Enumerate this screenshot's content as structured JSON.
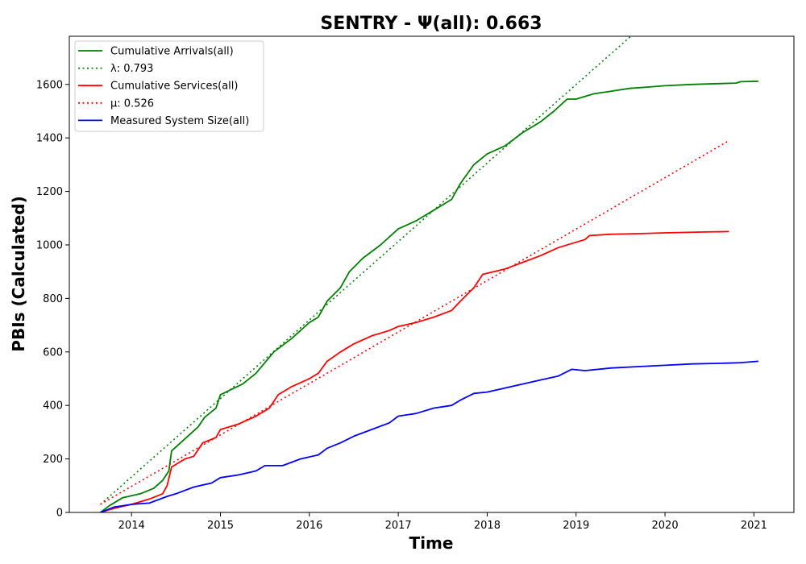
{
  "chart_data": {
    "type": "line",
    "title": "SENTRY -  Ψ(all): 0.663",
    "xlabel": "Time",
    "ylabel": "PBIs (Calculated)",
    "xlim": [
      2013.3,
      2021.45
    ],
    "ylim": [
      0,
      1780
    ],
    "x_ticks": [
      2014,
      2015,
      2016,
      2017,
      2018,
      2019,
      2020,
      2021
    ],
    "y_ticks": [
      0,
      200,
      400,
      600,
      800,
      1000,
      1200,
      1400,
      1600
    ],
    "legend_position": "top-left",
    "legend": [
      {
        "label": "Cumulative Arrivals(all)",
        "color": "#008000",
        "style": "solid"
      },
      {
        "label": "λ: 0.793",
        "color": "#008000",
        "style": "dotted"
      },
      {
        "label": "Cumulative Services(all)",
        "color": "#ff0000",
        "style": "solid"
      },
      {
        "label": "μ: 0.526",
        "color": "#ff0000",
        "style": "dotted"
      },
      {
        "label": "Measured System Size(all)",
        "color": "#0000ff",
        "style": "solid"
      }
    ],
    "series": [
      {
        "name": "Cumulative Arrivals(all)",
        "color": "#008000",
        "style": "solid",
        "points": [
          [
            2013.65,
            0
          ],
          [
            2013.75,
            25
          ],
          [
            2013.9,
            55
          ],
          [
            2014.1,
            70
          ],
          [
            2014.25,
            90
          ],
          [
            2014.35,
            120
          ],
          [
            2014.42,
            155
          ],
          [
            2014.45,
            230
          ],
          [
            2014.55,
            260
          ],
          [
            2014.65,
            290
          ],
          [
            2014.75,
            320
          ],
          [
            2014.82,
            355
          ],
          [
            2014.95,
            390
          ],
          [
            2015.0,
            440
          ],
          [
            2015.25,
            480
          ],
          [
            2015.4,
            520
          ],
          [
            2015.6,
            600
          ],
          [
            2015.8,
            650
          ],
          [
            2016.0,
            710
          ],
          [
            2016.1,
            730
          ],
          [
            2016.2,
            790
          ],
          [
            2016.35,
            840
          ],
          [
            2016.45,
            900
          ],
          [
            2016.6,
            950
          ],
          [
            2016.8,
            1000
          ],
          [
            2017.0,
            1060
          ],
          [
            2017.2,
            1090
          ],
          [
            2017.4,
            1130
          ],
          [
            2017.6,
            1170
          ],
          [
            2017.7,
            1230
          ],
          [
            2017.85,
            1300
          ],
          [
            2018.0,
            1340
          ],
          [
            2018.2,
            1370
          ],
          [
            2018.4,
            1420
          ],
          [
            2018.6,
            1460
          ],
          [
            2018.75,
            1500
          ],
          [
            2018.9,
            1545
          ],
          [
            2019.0,
            1545
          ],
          [
            2019.2,
            1565
          ],
          [
            2019.4,
            1575
          ],
          [
            2019.6,
            1585
          ],
          [
            2019.8,
            1590
          ],
          [
            2020.0,
            1595
          ],
          [
            2020.3,
            1600
          ],
          [
            2020.6,
            1603
          ],
          [
            2020.8,
            1605
          ],
          [
            2020.85,
            1610
          ],
          [
            2021.05,
            1612
          ]
        ]
      },
      {
        "name": "λ: 0.793",
        "color": "#008000",
        "style": "dotted",
        "points": [
          [
            2013.65,
            30
          ],
          [
            2019.65,
            1790
          ]
        ]
      },
      {
        "name": "Cumulative Services(all)",
        "color": "#ff0000",
        "style": "solid",
        "points": [
          [
            2013.65,
            0
          ],
          [
            2013.8,
            15
          ],
          [
            2014.0,
            30
          ],
          [
            2014.2,
            50
          ],
          [
            2014.35,
            70
          ],
          [
            2014.4,
            100
          ],
          [
            2014.45,
            170
          ],
          [
            2014.6,
            200
          ],
          [
            2014.7,
            210
          ],
          [
            2014.8,
            260
          ],
          [
            2014.95,
            280
          ],
          [
            2015.0,
            310
          ],
          [
            2015.2,
            330
          ],
          [
            2015.4,
            360
          ],
          [
            2015.55,
            390
          ],
          [
            2015.65,
            440
          ],
          [
            2015.8,
            470
          ],
          [
            2016.0,
            500
          ],
          [
            2016.1,
            520
          ],
          [
            2016.2,
            565
          ],
          [
            2016.35,
            600
          ],
          [
            2016.5,
            630
          ],
          [
            2016.7,
            660
          ],
          [
            2016.9,
            680
          ],
          [
            2017.0,
            695
          ],
          [
            2017.2,
            710
          ],
          [
            2017.4,
            730
          ],
          [
            2017.6,
            755
          ],
          [
            2017.7,
            790
          ],
          [
            2017.85,
            840
          ],
          [
            2017.95,
            890
          ],
          [
            2018.2,
            910
          ],
          [
            2018.4,
            935
          ],
          [
            2018.6,
            960
          ],
          [
            2018.8,
            990
          ],
          [
            2019.0,
            1010
          ],
          [
            2019.1,
            1020
          ],
          [
            2019.15,
            1035
          ],
          [
            2019.4,
            1040
          ],
          [
            2019.7,
            1042
          ],
          [
            2020.0,
            1045
          ],
          [
            2020.4,
            1048
          ],
          [
            2020.72,
            1050
          ]
        ]
      },
      {
        "name": "μ: 0.526",
        "color": "#ff0000",
        "style": "dotted",
        "points": [
          [
            2013.65,
            30
          ],
          [
            2020.72,
            1390
          ]
        ]
      },
      {
        "name": "Measured System Size(all)",
        "color": "#0000ff",
        "style": "solid",
        "points": [
          [
            2013.65,
            0
          ],
          [
            2013.8,
            20
          ],
          [
            2014.0,
            30
          ],
          [
            2014.2,
            35
          ],
          [
            2014.4,
            60
          ],
          [
            2014.5,
            70
          ],
          [
            2014.7,
            95
          ],
          [
            2014.9,
            110
          ],
          [
            2015.0,
            130
          ],
          [
            2015.2,
            140
          ],
          [
            2015.4,
            155
          ],
          [
            2015.5,
            175
          ],
          [
            2015.7,
            175
          ],
          [
            2015.9,
            200
          ],
          [
            2016.1,
            215
          ],
          [
            2016.2,
            240
          ],
          [
            2016.35,
            260
          ],
          [
            2016.5,
            285
          ],
          [
            2016.7,
            310
          ],
          [
            2016.9,
            335
          ],
          [
            2017.0,
            360
          ],
          [
            2017.2,
            370
          ],
          [
            2017.4,
            390
          ],
          [
            2017.6,
            400
          ],
          [
            2017.7,
            420
          ],
          [
            2017.85,
            445
          ],
          [
            2018.0,
            450
          ],
          [
            2018.2,
            465
          ],
          [
            2018.4,
            480
          ],
          [
            2018.6,
            495
          ],
          [
            2018.8,
            510
          ],
          [
            2018.95,
            535
          ],
          [
            2019.1,
            530
          ],
          [
            2019.4,
            540
          ],
          [
            2019.7,
            545
          ],
          [
            2020.0,
            550
          ],
          [
            2020.3,
            555
          ],
          [
            2020.7,
            558
          ],
          [
            2020.85,
            560
          ],
          [
            2021.05,
            565
          ]
        ]
      }
    ]
  }
}
